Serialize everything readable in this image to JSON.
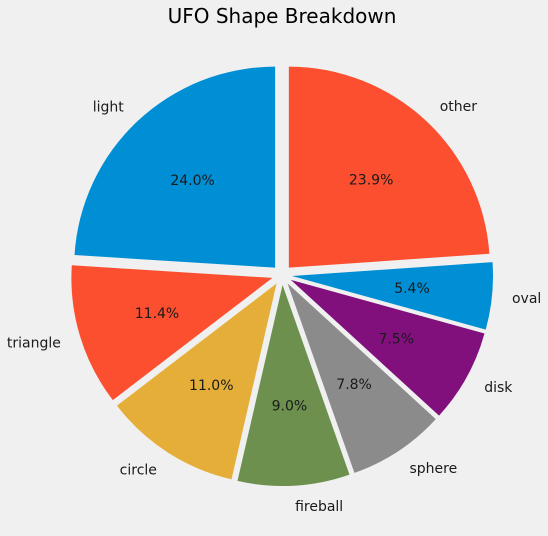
{
  "chart_data": {
    "type": "pie",
    "title": "UFO Shape Breakdown",
    "slices": [
      {
        "label": "light",
        "value": 24.0,
        "pct_text": "24.0%",
        "color": "#008fd5"
      },
      {
        "label": "triangle",
        "value": 11.4,
        "pct_text": "11.4%",
        "color": "#fc4f30"
      },
      {
        "label": "circle",
        "value": 11.0,
        "pct_text": "11.0%",
        "color": "#e5ae38"
      },
      {
        "label": "fireball",
        "value": 9.0,
        "pct_text": "9.0%",
        "color": "#6d904f"
      },
      {
        "label": "sphere",
        "value": 7.8,
        "pct_text": "7.8%",
        "color": "#8b8b8b"
      },
      {
        "label": "disk",
        "value": 7.5,
        "pct_text": "7.5%",
        "color": "#810f7c"
      },
      {
        "label": "oval",
        "value": 5.4,
        "pct_text": "5.4%",
        "color": "#008fd5"
      },
      {
        "label": "other",
        "value": 23.9,
        "pct_text": "23.9%",
        "color": "#fc4f30"
      }
    ],
    "start_angle_deg": 90,
    "direction": "counterclockwise",
    "exploded": true
  }
}
